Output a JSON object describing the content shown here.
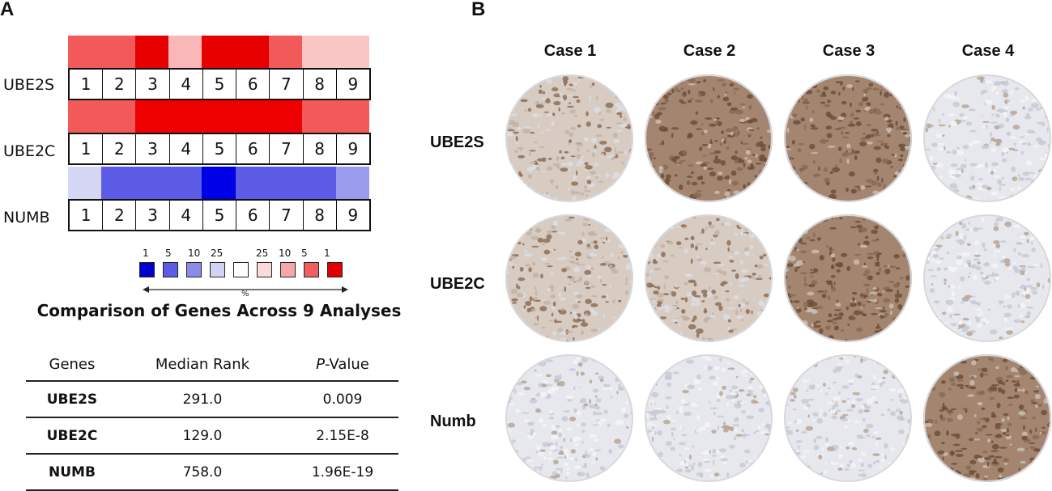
{
  "panel_a": {
    "letter": "A",
    "heatmap": [
      {
        "gene": "UBE2S",
        "cells": [
          "#f25a5a",
          "#f25a5a",
          "#e60000",
          "#f9b7b7",
          "#e60000",
          "#e60000",
          "#f25a5a",
          "#fbc6c6",
          "#fbc6c6"
        ]
      },
      {
        "gene": "UBE2C",
        "cells": [
          "#f25a5a",
          "#f25a5a",
          "#ee0000",
          "#ee0000",
          "#ee0000",
          "#ee0000",
          "#ee0000",
          "#f25a5a",
          "#f25a5a"
        ]
      },
      {
        "gene": "NUMB",
        "cells": [
          "#d6d6f5",
          "#5c5ce6",
          "#5c5ce6",
          "#5c5ce6",
          "#0000e6",
          "#5c5ce6",
          "#5c5ce6",
          "#5c5ce6",
          "#9c9cee"
        ]
      }
    ],
    "analysis_numbers": [
      "1",
      "2",
      "3",
      "4",
      "5",
      "6",
      "7",
      "8",
      "9"
    ],
    "legend": {
      "labels": [
        "1",
        "5",
        "10",
        "25",
        "",
        "25",
        "10",
        "5",
        "1"
      ],
      "colors": [
        "#0000cc",
        "#5c5ce6",
        "#8c8ce8",
        "#d2d2f2",
        "#ffffff",
        "#fadada",
        "#f6a8a8",
        "#f06060",
        "#e00000"
      ],
      "percent_symbol": "%"
    },
    "title": "Comparison of Genes Across 9 Analyses",
    "table": {
      "headers": {
        "genes": "Genes",
        "median_rank": "Median Rank",
        "p_prefix": "P",
        "p_suffix": "-Value"
      },
      "rows": [
        {
          "gene": "UBE2S",
          "median_rank": "291.0",
          "p_value": "0.009"
        },
        {
          "gene": "UBE2C",
          "median_rank": "129.0",
          "p_value": "2.15E-8"
        },
        {
          "gene": "NUMB",
          "median_rank": "758.0",
          "p_value": "1.96E-19"
        }
      ]
    }
  },
  "panel_b": {
    "letter": "B",
    "cases": [
      "Case 1",
      "Case 2",
      "Case 3",
      "Case 4"
    ],
    "rows": [
      "UBE2S",
      "UBE2C",
      "Numb"
    ],
    "staining_level": [
      [
        "moderate",
        "strong",
        "strong",
        "weak"
      ],
      [
        "moderate",
        "moderate",
        "strong",
        "weak"
      ],
      [
        "weak",
        "weak",
        "weak",
        "strong"
      ]
    ],
    "colors": {
      "strong": "#8a6a55",
      "moderate": "#b5a396",
      "weak": "#d9dbe2",
      "background": "#ffffff"
    }
  }
}
